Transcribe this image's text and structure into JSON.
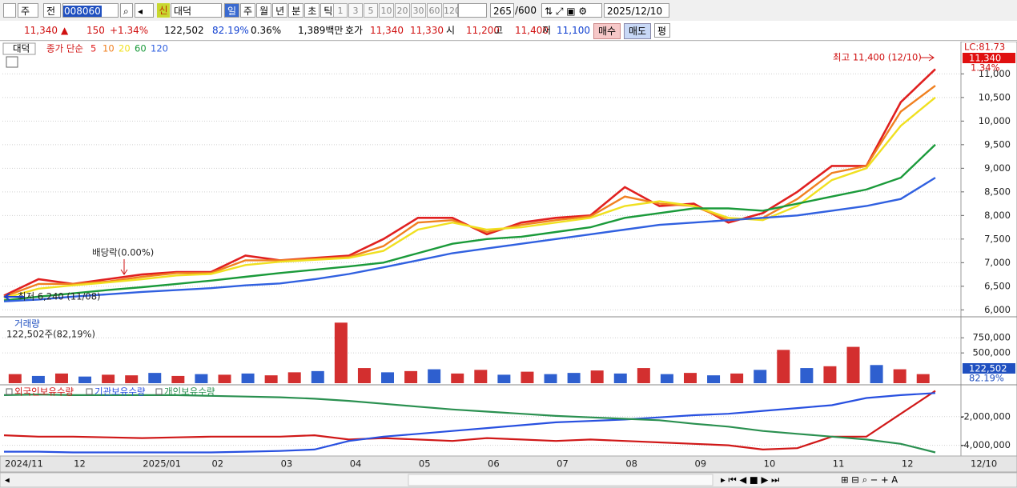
{
  "toolbar": {
    "period_type": "주",
    "prev": "전",
    "code": "008060",
    "new_label": "신",
    "name": "대덕",
    "periods": [
      "일",
      "주",
      "월",
      "년",
      "분",
      "초",
      "틱"
    ],
    "intervals": [
      "1",
      "3",
      "5",
      "10",
      "20",
      "30",
      "60",
      "120"
    ],
    "count": "265",
    "max_count": "/600",
    "date": "2025/12/10"
  },
  "quote": {
    "price": "11,340",
    "arrow": "▲",
    "change": "150",
    "change_pct": "+1.34%",
    "volume": "122,502",
    "volume_ratio": "82.19%",
    "turnover": "0.36%",
    "amount": "1,389백만",
    "quote_label": "호가",
    "ask": "11,340",
    "bid": "11,330",
    "open_label": "시",
    "open": "11,200",
    "high_label": "고",
    "high": "11,400",
    "low_label": "저",
    "low": "11,100",
    "buy": "매수",
    "sell": "매도",
    "avg": "평"
  },
  "chart_data": [
    {
      "type": "line",
      "pane_title": "대덕",
      "legend_title": "종가 단순",
      "categories": [
        "2024/11",
        null,
        "12",
        null,
        "2025/01",
        null,
        "02",
        null,
        "03",
        null,
        "04",
        null,
        "05",
        null,
        "06",
        null,
        "07",
        null,
        "08",
        null,
        "09",
        null,
        "10",
        null,
        "11",
        null,
        "12",
        null
      ],
      "x_end_label": "12/10",
      "series": [
        {
          "name": "5",
          "color": "#e02020",
          "values": [
            6300,
            6650,
            6550,
            6650,
            6750,
            6800,
            6800,
            7150,
            7050,
            7100,
            7150,
            7500,
            7950,
            7950,
            7600,
            7850,
            7950,
            8000,
            8600,
            8200,
            8250,
            7850,
            8050,
            8500,
            9050,
            9050,
            10400,
            11100
          ]
        },
        {
          "name": "10",
          "color": "#f08020",
          "values": [
            6280,
            6550,
            6550,
            6600,
            6700,
            6780,
            6780,
            7050,
            7050,
            7080,
            7120,
            7350,
            7850,
            7900,
            7650,
            7800,
            7900,
            7980,
            8400,
            8250,
            8200,
            7900,
            7950,
            8350,
            8900,
            9050,
            10200,
            10750
          ]
        },
        {
          "name": "20",
          "color": "#f0e020",
          "values": [
            6250,
            6450,
            6520,
            6580,
            6650,
            6730,
            6760,
            6950,
            7020,
            7060,
            7100,
            7250,
            7700,
            7850,
            7700,
            7750,
            7850,
            7950,
            8200,
            8300,
            8200,
            7950,
            7900,
            8200,
            8750,
            9000,
            9900,
            10500
          ]
        },
        {
          "name": "60",
          "color": "#1a9a3a",
          "values": [
            6200,
            6280,
            6350,
            6420,
            6480,
            6550,
            6620,
            6700,
            6780,
            6850,
            6920,
            7000,
            7200,
            7400,
            7500,
            7550,
            7650,
            7750,
            7950,
            8050,
            8150,
            8150,
            8100,
            8250,
            8400,
            8550,
            8800,
            9500
          ]
        },
        {
          "name": "120",
          "color": "#3060e0",
          "values": [
            6180,
            6220,
            6280,
            6330,
            6380,
            6420,
            6460,
            6520,
            6560,
            6650,
            6760,
            6900,
            7050,
            7200,
            7300,
            7400,
            7500,
            7600,
            7700,
            7800,
            7850,
            7900,
            7950,
            8000,
            8100,
            8200,
            8350,
            8800
          ]
        }
      ],
      "ylim": [
        5870,
        11650
      ],
      "yticks": [
        {
          "value": 6000,
          "label": "6,000"
        },
        {
          "value": 6500,
          "label": "6,500"
        },
        {
          "value": 7000,
          "label": "7,000"
        },
        {
          "value": 7500,
          "label": "7,500"
        },
        {
          "value": 8000,
          "label": "8,000"
        },
        {
          "value": 8500,
          "label": "8,500"
        },
        {
          "value": 9000,
          "label": "9,000"
        },
        {
          "value": 9500,
          "label": "9,500"
        },
        {
          "value": 10000,
          "label": "10,000"
        },
        {
          "value": 10500,
          "label": "10,500"
        },
        {
          "value": 11000,
          "label": "11,000"
        }
      ],
      "annotations": [
        "배당락(0.00%)",
        "최고 11,400 (12/10)",
        "최저 6,240 (11/08)"
      ],
      "lc_label": "LC:81.73",
      "last_price": "11,340",
      "last_change": "1.34%"
    },
    {
      "type": "bar",
      "pane_title": "거래량",
      "subtitle": "122,502주(82,19%)",
      "values": [
        150000,
        120000,
        160000,
        110000,
        140000,
        130000,
        170000,
        120000,
        150000,
        140000,
        160000,
        130000,
        180000,
        200000,
        1000000,
        250000,
        180000,
        200000,
        230000,
        160000,
        220000,
        140000,
        190000,
        150000,
        170000,
        210000,
        160000,
        250000,
        150000,
        170000,
        130000,
        160000,
        220000,
        550000,
        250000,
        280000,
        600000,
        300000,
        230000,
        150000
      ],
      "colors": [
        "#d32f2f",
        "#2e5fcf",
        "#d32f2f",
        "#2e5fcf",
        "#d32f2f",
        "#d32f2f",
        "#2e5fcf",
        "#d32f2f",
        "#2e5fcf",
        "#d32f2f",
        "#2e5fcf",
        "#d32f2f",
        "#d32f2f",
        "#2e5fcf",
        "#d32f2f",
        "#d32f2f",
        "#2e5fcf",
        "#d32f2f",
        "#2e5fcf",
        "#d32f2f",
        "#d32f2f",
        "#2e5fcf",
        "#d32f2f",
        "#2e5fcf",
        "#2e5fcf",
        "#d32f2f",
        "#2e5fcf",
        "#d32f2f",
        "#2e5fcf",
        "#d32f2f",
        "#2e5fcf",
        "#d32f2f",
        "#2e5fcf",
        "#d32f2f",
        "#2e5fcf",
        "#d32f2f",
        "#d32f2f",
        "#2e5fcf",
        "#d32f2f",
        "#d32f2f"
      ],
      "ylim": [
        0,
        1070000
      ],
      "yticks": [
        {
          "value": 500000,
          "label": "500,000"
        },
        {
          "value": 750000,
          "label": "750,000"
        }
      ],
      "last_value": "122,502",
      "last_ratio": "82.19%"
    },
    {
      "type": "line",
      "series": [
        {
          "name": "외국인보유수량",
          "color": "#d01818",
          "values": [
            -3300000,
            -3400000,
            -3400000,
            -3450000,
            -3500000,
            -3450000,
            -3400000,
            -3400000,
            -3400000,
            -3300000,
            -3600000,
            -3500000,
            -3600000,
            -3700000,
            -3500000,
            -3600000,
            -3700000,
            -3600000,
            -3700000,
            -3800000,
            -3900000,
            -4000000,
            -4300000,
            -4200000,
            -3400000,
            -3400000,
            -1800000,
            -200000
          ]
        },
        {
          "name": "기관보유수량",
          "color": "#2850e0",
          "values": [
            -4450000,
            -4450000,
            -4500000,
            -4500000,
            -4500000,
            -4500000,
            -4500000,
            -4450000,
            -4400000,
            -4300000,
            -3700000,
            -3400000,
            -3200000,
            -3000000,
            -2800000,
            -2600000,
            -2400000,
            -2300000,
            -2200000,
            -2050000,
            -1900000,
            -1800000,
            -1600000,
            -1400000,
            -1200000,
            -700000,
            -500000,
            -350000
          ]
        },
        {
          "name": "개인보유수량",
          "color": "#2a9050",
          "values": [
            -500000,
            -450000,
            -500000,
            -500000,
            -500000,
            -500000,
            -550000,
            -600000,
            -650000,
            -750000,
            -900000,
            -1100000,
            -1300000,
            -1500000,
            -1650000,
            -1800000,
            -1950000,
            -2050000,
            -2150000,
            -2250000,
            -2500000,
            -2700000,
            -3000000,
            -3200000,
            -3400000,
            -3600000,
            -3900000,
            -4500000
          ]
        }
      ],
      "ylim": [
        -4750000,
        0
      ],
      "yticks": [
        {
          "value": -2000000,
          "label": "-2,000,000"
        },
        {
          "value": -4000000,
          "label": "-4,000,000"
        }
      ]
    }
  ]
}
